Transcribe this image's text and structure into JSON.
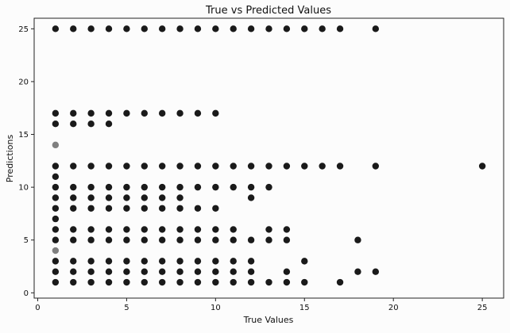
{
  "chart_data": {
    "type": "scatter",
    "title": "True vs Predicted Values",
    "xlabel": "True Values",
    "ylabel": "Predictions",
    "xlim": [
      -0.2,
      26.2
    ],
    "ylim": [
      -0.5,
      26.0
    ],
    "xticks": [
      0,
      5,
      10,
      15,
      20,
      25
    ],
    "yticks": [
      0,
      5,
      10,
      15,
      20,
      25
    ],
    "grid": false,
    "marker_color": "#1a1a1a",
    "points": [
      [
        1,
        25
      ],
      [
        2,
        25
      ],
      [
        3,
        25
      ],
      [
        4,
        25
      ],
      [
        5,
        25
      ],
      [
        6,
        25
      ],
      [
        7,
        25
      ],
      [
        8,
        25
      ],
      [
        9,
        25
      ],
      [
        10,
        25
      ],
      [
        11,
        25
      ],
      [
        12,
        25
      ],
      [
        13,
        25
      ],
      [
        14,
        25
      ],
      [
        15,
        25
      ],
      [
        16,
        25
      ],
      [
        17,
        25
      ],
      [
        19,
        25
      ],
      [
        1,
        17
      ],
      [
        2,
        17
      ],
      [
        3,
        17
      ],
      [
        4,
        17
      ],
      [
        5,
        17
      ],
      [
        6,
        17
      ],
      [
        7,
        17
      ],
      [
        8,
        17
      ],
      [
        9,
        17
      ],
      [
        10,
        17
      ],
      [
        1,
        16
      ],
      [
        2,
        16
      ],
      [
        3,
        16
      ],
      [
        4,
        16
      ],
      [
        1,
        14
      ],
      [
        1,
        12
      ],
      [
        2,
        12
      ],
      [
        3,
        12
      ],
      [
        4,
        12
      ],
      [
        5,
        12
      ],
      [
        6,
        12
      ],
      [
        7,
        12
      ],
      [
        8,
        12
      ],
      [
        9,
        12
      ],
      [
        10,
        12
      ],
      [
        11,
        12
      ],
      [
        12,
        12
      ],
      [
        13,
        12
      ],
      [
        14,
        12
      ],
      [
        15,
        12
      ],
      [
        16,
        12
      ],
      [
        17,
        12
      ],
      [
        19,
        12
      ],
      [
        25,
        12
      ],
      [
        1,
        11
      ],
      [
        1,
        10
      ],
      [
        2,
        10
      ],
      [
        3,
        10
      ],
      [
        4,
        10
      ],
      [
        5,
        10
      ],
      [
        6,
        10
      ],
      [
        7,
        10
      ],
      [
        8,
        10
      ],
      [
        9,
        10
      ],
      [
        10,
        10
      ],
      [
        11,
        10
      ],
      [
        12,
        10
      ],
      [
        13,
        10
      ],
      [
        1,
        9
      ],
      [
        2,
        9
      ],
      [
        3,
        9
      ],
      [
        4,
        9
      ],
      [
        5,
        9
      ],
      [
        6,
        9
      ],
      [
        7,
        9
      ],
      [
        8,
        9
      ],
      [
        12,
        9
      ],
      [
        1,
        8
      ],
      [
        2,
        8
      ],
      [
        3,
        8
      ],
      [
        4,
        8
      ],
      [
        5,
        8
      ],
      [
        6,
        8
      ],
      [
        7,
        8
      ],
      [
        8,
        8
      ],
      [
        9,
        8
      ],
      [
        10,
        8
      ],
      [
        1,
        7
      ],
      [
        1,
        6
      ],
      [
        2,
        6
      ],
      [
        3,
        6
      ],
      [
        4,
        6
      ],
      [
        5,
        6
      ],
      [
        6,
        6
      ],
      [
        7,
        6
      ],
      [
        8,
        6
      ],
      [
        9,
        6
      ],
      [
        10,
        6
      ],
      [
        11,
        6
      ],
      [
        13,
        6
      ],
      [
        14,
        6
      ],
      [
        1,
        5
      ],
      [
        2,
        5
      ],
      [
        3,
        5
      ],
      [
        4,
        5
      ],
      [
        5,
        5
      ],
      [
        6,
        5
      ],
      [
        7,
        5
      ],
      [
        8,
        5
      ],
      [
        9,
        5
      ],
      [
        10,
        5
      ],
      [
        11,
        5
      ],
      [
        12,
        5
      ],
      [
        13,
        5
      ],
      [
        14,
        5
      ],
      [
        18,
        5
      ],
      [
        1,
        4
      ],
      [
        1,
        3
      ],
      [
        2,
        3
      ],
      [
        3,
        3
      ],
      [
        4,
        3
      ],
      [
        5,
        3
      ],
      [
        6,
        3
      ],
      [
        7,
        3
      ],
      [
        8,
        3
      ],
      [
        9,
        3
      ],
      [
        10,
        3
      ],
      [
        11,
        3
      ],
      [
        12,
        3
      ],
      [
        15,
        3
      ],
      [
        1,
        2
      ],
      [
        2,
        2
      ],
      [
        3,
        2
      ],
      [
        4,
        2
      ],
      [
        5,
        2
      ],
      [
        6,
        2
      ],
      [
        7,
        2
      ],
      [
        8,
        2
      ],
      [
        9,
        2
      ],
      [
        10,
        2
      ],
      [
        11,
        2
      ],
      [
        12,
        2
      ],
      [
        14,
        2
      ],
      [
        18,
        2
      ],
      [
        19,
        2
      ],
      [
        1,
        1
      ],
      [
        2,
        1
      ],
      [
        3,
        1
      ],
      [
        4,
        1
      ],
      [
        5,
        1
      ],
      [
        6,
        1
      ],
      [
        7,
        1
      ],
      [
        8,
        1
      ],
      [
        9,
        1
      ],
      [
        10,
        1
      ],
      [
        11,
        1
      ],
      [
        12,
        1
      ],
      [
        13,
        1
      ],
      [
        14,
        1
      ],
      [
        15,
        1
      ],
      [
        17,
        1
      ]
    ],
    "light_points": [
      [
        1,
        14
      ],
      [
        1,
        4
      ]
    ]
  }
}
